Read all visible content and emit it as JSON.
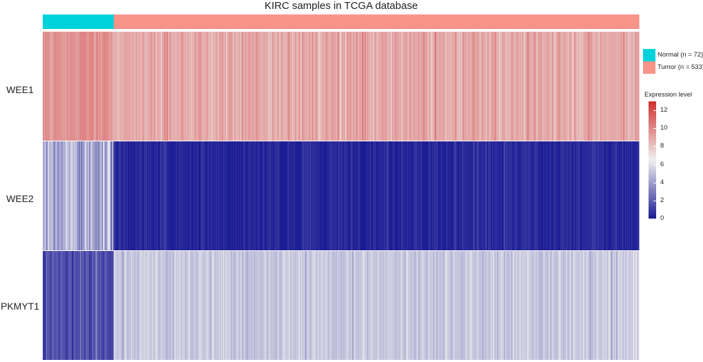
{
  "chart_data": {
    "type": "heatmap",
    "title": "KIRC samples in TCGA database",
    "genes": [
      "WEE1",
      "WEE2",
      "PKMYT1"
    ],
    "groups": [
      {
        "name": "Normal",
        "n": 72,
        "label": "Normal (n = 72)",
        "color": "#00d2dc"
      },
      {
        "name": "Tumor",
        "n": 533,
        "label": "Tumor (n = 533)",
        "color": "#f8938a"
      }
    ],
    "colorbar": {
      "title": "Expression level",
      "min": 0,
      "max": 13,
      "mid": 6.5,
      "ticks": [
        0,
        2,
        4,
        6,
        8,
        10,
        12
      ],
      "tick_labels": [
        "0",
        "2",
        "4",
        "6",
        "8",
        "10",
        "12"
      ],
      "low_color": "#1b1b94",
      "mid_color": "#f0f0f0",
      "high_color": "#d03030"
    },
    "expression_profile": {
      "WEE1": {
        "Normal": {
          "mean": 9.8,
          "sd": 0.7
        },
        "Tumor": {
          "mean": 8.9,
          "sd": 0.8
        }
      },
      "WEE2": {
        "Normal": {
          "mean": 4.5,
          "sd": 1.6
        },
        "Tumor": {
          "mean": 0.4,
          "sd": 0.5
        }
      },
      "PKMYT1": {
        "Normal": {
          "mean": 1.6,
          "sd": 0.9
        },
        "Tumor": {
          "mean": 5.3,
          "sd": 0.6
        }
      }
    }
  }
}
